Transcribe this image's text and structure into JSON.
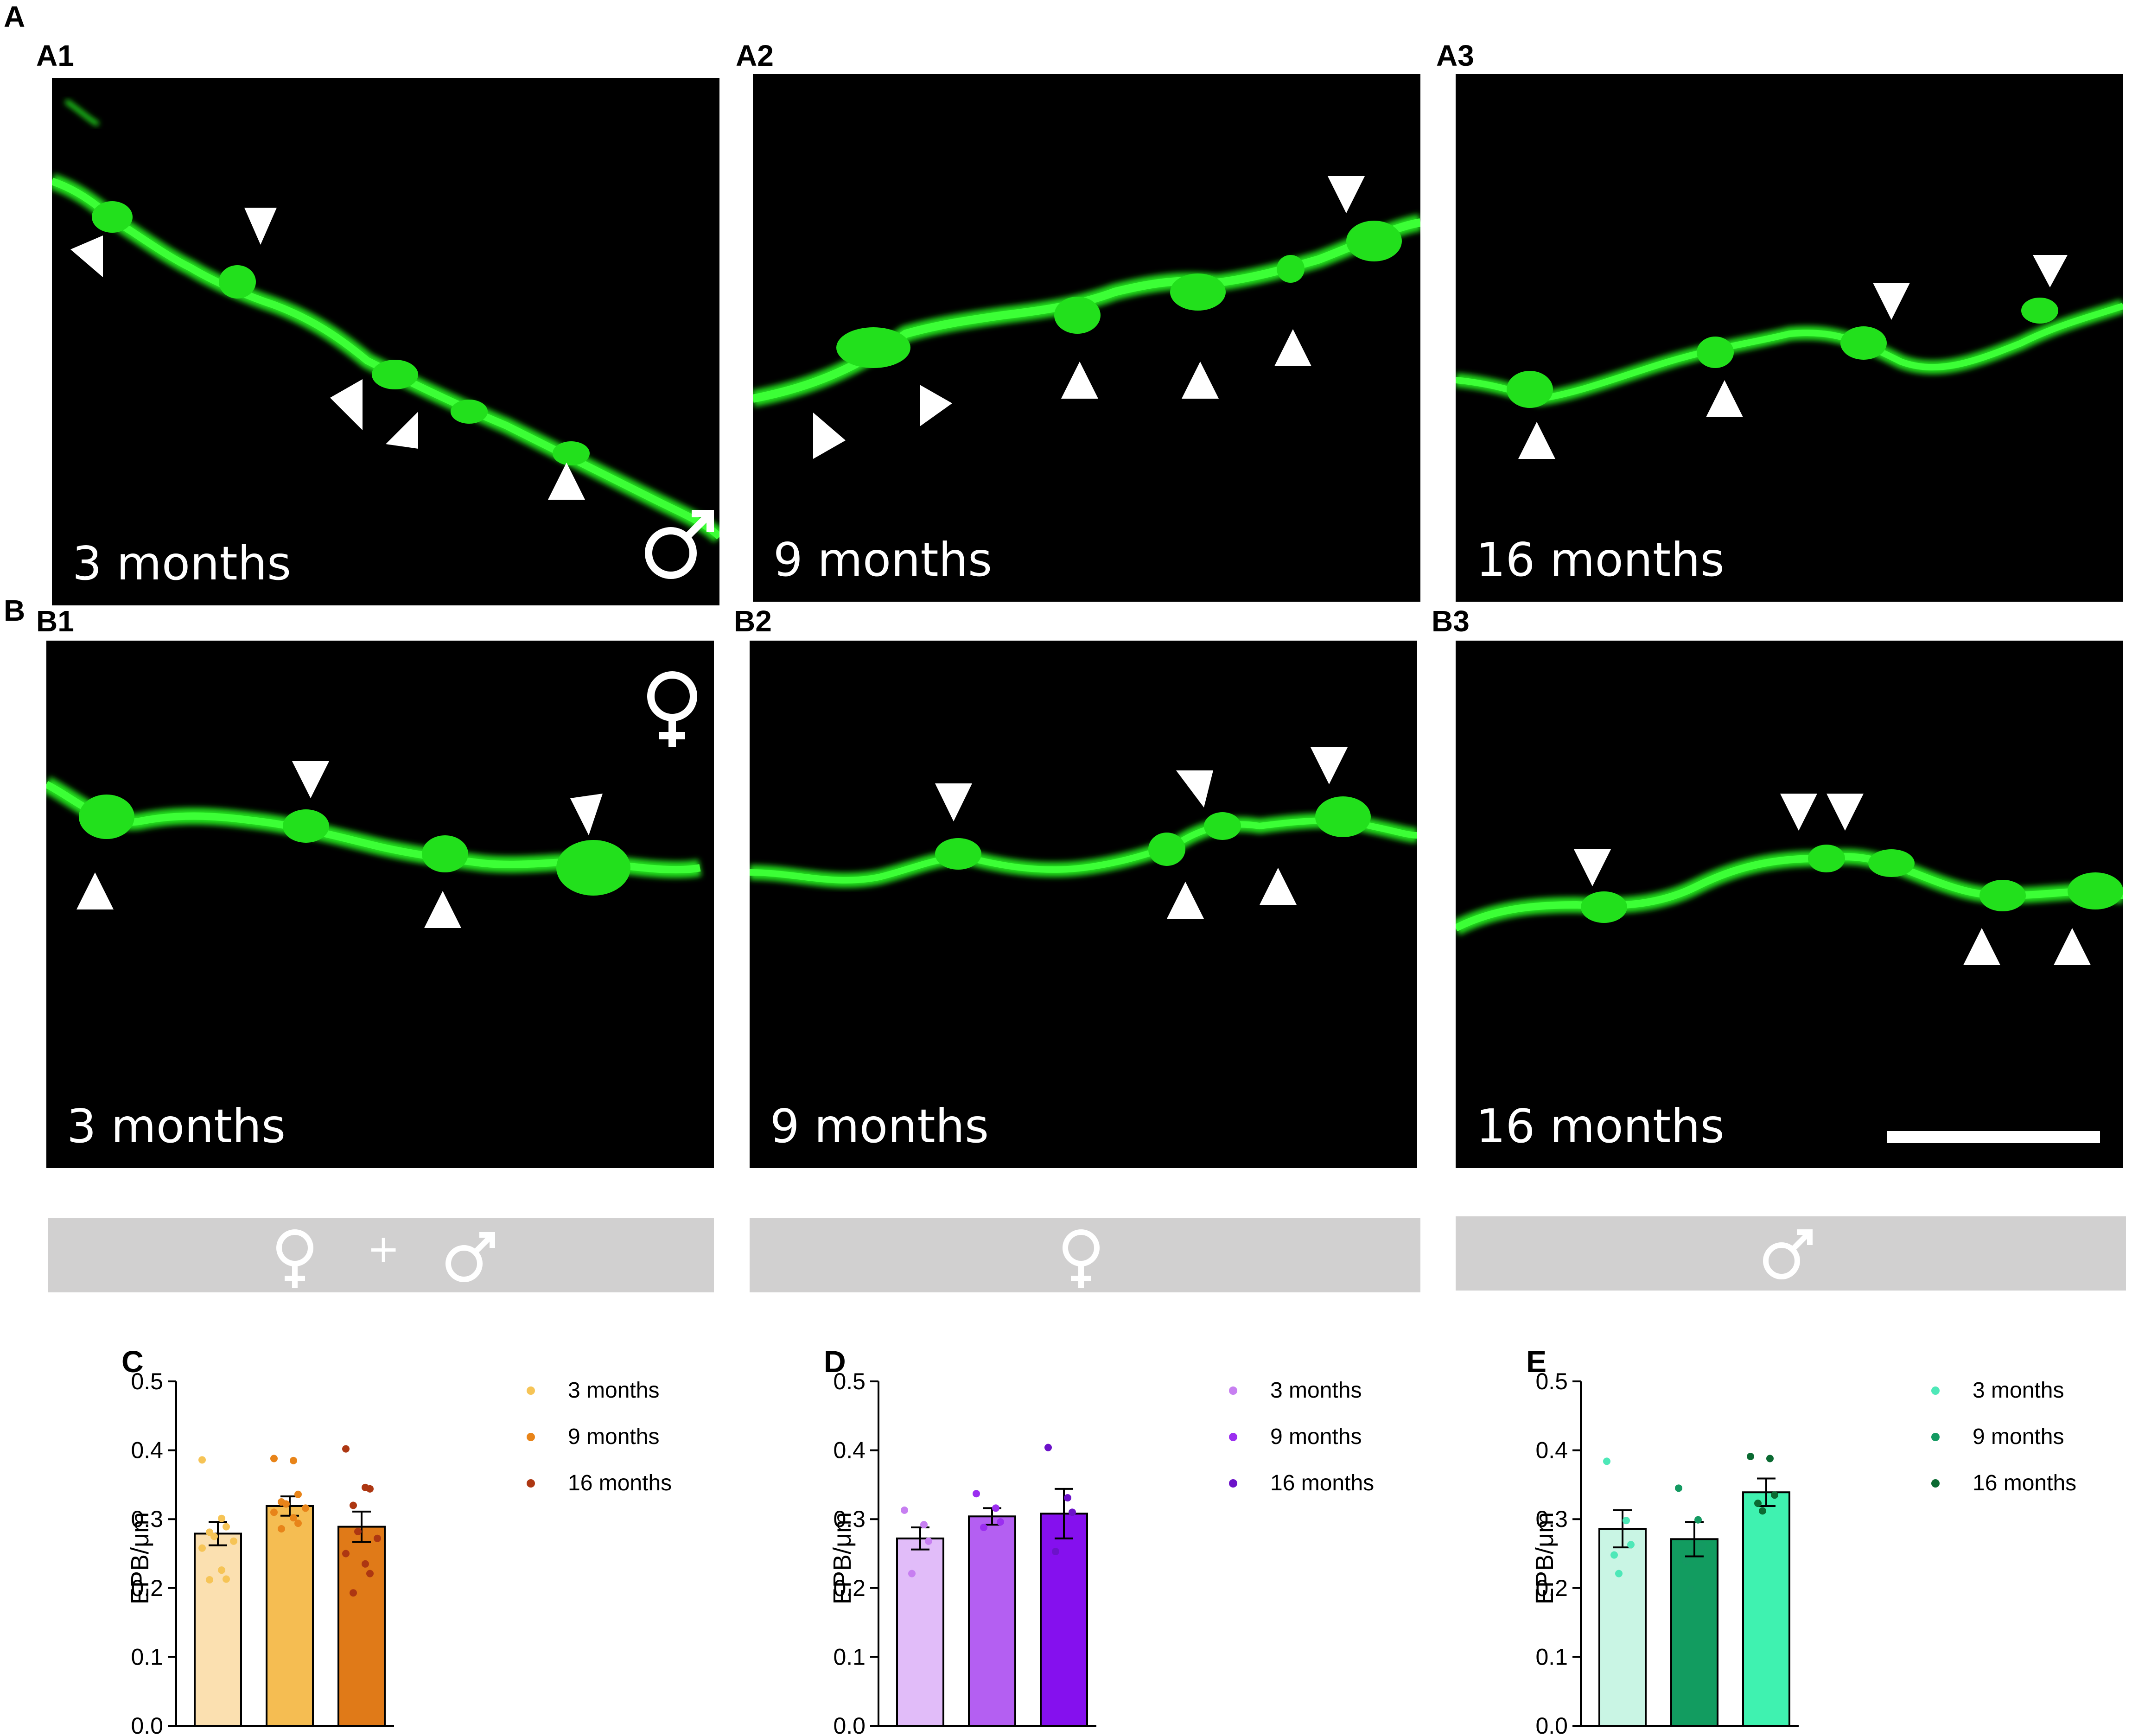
{
  "figure": {
    "section_labels": {
      "A": "A",
      "B": "B"
    },
    "panels": [
      {
        "id": "A1",
        "label": "A1",
        "caption": "3 months",
        "sex_symbol": "male"
      },
      {
        "id": "A2",
        "label": "A2",
        "caption": "9 months",
        "sex_symbol": ""
      },
      {
        "id": "A3",
        "label": "A3",
        "caption": "16 months",
        "sex_symbol": ""
      },
      {
        "id": "B1",
        "label": "B1",
        "caption": "3 months",
        "sex_symbol": "female"
      },
      {
        "id": "B2",
        "label": "B2",
        "caption": "9 months",
        "sex_symbol": ""
      },
      {
        "id": "B3",
        "label": "B3",
        "caption": "16 months",
        "sex_symbol": "",
        "scale_bar": true
      }
    ],
    "sex_bars": [
      {
        "id": "combined",
        "symbols": [
          "female",
          "+",
          "male"
        ],
        "plus": "+"
      },
      {
        "id": "female",
        "symbols": [
          "female"
        ]
      },
      {
        "id": "male",
        "symbols": [
          "male"
        ]
      }
    ],
    "colors": {
      "axon": "#22e01c",
      "panel_bg": "#000000",
      "sexbar_bg": "#d1d0d0"
    }
  },
  "chart_data": [
    {
      "id": "C",
      "panel_label": "C",
      "type": "bar",
      "ylabel": "EPB/μm",
      "ylim": [
        0,
        0.5
      ],
      "yticks": [
        "0.0",
        "0.1",
        "0.2",
        "0.3",
        "0.4",
        "0.5"
      ],
      "categories": [
        "3 months",
        "9 months",
        "16 months"
      ],
      "values": [
        0.279,
        0.319,
        0.289
      ],
      "sem": [
        0.017,
        0.014,
        0.022
      ],
      "colors": [
        "#fbe0b0",
        "#f5bd52",
        "#e07a18"
      ],
      "dot_colors": [
        "#f6c456",
        "#e88419",
        "#ad3712"
      ],
      "points": [
        [
          0.386,
          0.301,
          0.289,
          0.281,
          0.275,
          0.268,
          0.258,
          0.226,
          0.213,
          0.212
        ],
        [
          0.388,
          0.385,
          0.336,
          0.325,
          0.322,
          0.316,
          0.31,
          0.302,
          0.294,
          0.286
        ],
        [
          0.402,
          0.346,
          0.344,
          0.32,
          0.282,
          0.272,
          0.25,
          0.235,
          0.221,
          0.193
        ]
      ],
      "legend": [
        "3 months",
        "9 months",
        "16 months"
      ]
    },
    {
      "id": "D",
      "panel_label": "D",
      "type": "bar",
      "ylabel": "EPB/μm",
      "ylim": [
        0,
        0.5
      ],
      "yticks": [
        "0.0",
        "0.1",
        "0.2",
        "0.3",
        "0.4",
        "0.5"
      ],
      "categories": [
        "3 months",
        "9 months",
        "16 months"
      ],
      "values": [
        0.272,
        0.304,
        0.308
      ],
      "sem": [
        0.016,
        0.012,
        0.036
      ],
      "colors": [
        "#e1bcf9",
        "#b45ff2",
        "#8510ee"
      ],
      "dot_colors": [
        "#c77ff1",
        "#9b2ef0",
        "#6c12c9"
      ],
      "points": [
        [
          0.313,
          0.292,
          0.268,
          0.221
        ],
        [
          0.337,
          0.316,
          0.296,
          0.288
        ],
        [
          0.404,
          0.331,
          0.31,
          0.253
        ]
      ],
      "legend": [
        "3 months",
        "9 months",
        "16 months"
      ]
    },
    {
      "id": "E",
      "panel_label": "E",
      "type": "bar",
      "ylabel": "EPB/μm",
      "ylim": [
        0,
        0.5
      ],
      "yticks": [
        "0.0",
        "0.1",
        "0.2",
        "0.3",
        "0.4",
        "0.5"
      ],
      "categories": [
        "3 months",
        "9 months",
        "16 months"
      ],
      "values": [
        0.286,
        0.271,
        0.339
      ],
      "sem": [
        0.027,
        0.025,
        0.02
      ],
      "colors": [
        "#c9f5e4",
        "#129c60",
        "#3ff2b0"
      ],
      "dot_colors": [
        "#4ee8b8",
        "#149a62",
        "#0b6a32"
      ],
      "points": [
        [
          0.384,
          0.298,
          0.263,
          0.248,
          0.221
        ],
        [
          0.345,
          0.299,
          0.261,
          0.239,
          0.198
        ],
        [
          0.391,
          0.388,
          0.335,
          0.323,
          0.312
        ]
      ],
      "legend": [
        "3 months",
        "9 months",
        "16 months"
      ]
    }
  ]
}
